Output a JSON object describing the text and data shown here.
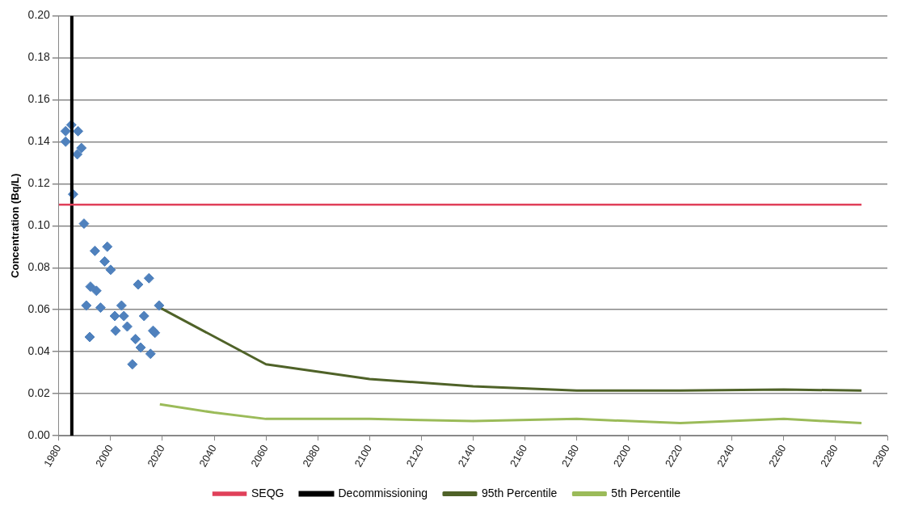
{
  "chart_data": {
    "type": "scatter",
    "ylabel": "Concentration (Bq/L)",
    "xlim": [
      1980,
      2300
    ],
    "xticks": [
      1980,
      2000,
      2020,
      2040,
      2060,
      2080,
      2100,
      2120,
      2140,
      2160,
      2180,
      2200,
      2220,
      2240,
      2260,
      2280,
      2300
    ],
    "ylim": [
      0,
      0.2
    ],
    "yticks": [
      {
        "value": 0,
        "label": "0.00"
      },
      {
        "value": 0.02,
        "label": "0.02"
      },
      {
        "value": 0.04,
        "label": "0.04"
      },
      {
        "value": 0.06,
        "label": "0.06"
      },
      {
        "value": 0.08,
        "label": "0.08"
      },
      {
        "value": 0.1,
        "label": "0.10"
      },
      {
        "value": 0.12,
        "label": "0.12"
      },
      {
        "value": 0.14,
        "label": "0.14"
      },
      {
        "value": 0.16,
        "label": "0.16"
      },
      {
        "value": 0.18,
        "label": "0.18"
      },
      {
        "value": 0.2,
        "label": "0.20"
      }
    ],
    "grid": "y",
    "legend": "bottom",
    "series": [
      {
        "color": "#4f81bd",
        "marker": "diamond",
        "x": [
          1984.8,
          1982.6,
          1982.6,
          1987.4,
          1988.7,
          1987.1,
          1985.5,
          1989.7,
          1993.9,
          1998.7,
          1997.7,
          2000,
          1992.2,
          1994.5,
          2010.6,
          2014.8,
          1990.6,
          1996.1,
          2004.2,
          2018.7,
          2001.6,
          2005.1,
          2012.9,
          2001.9,
          2006.4,
          2017.1,
          1991.9,
          2009.6,
          2011.6,
          2015.4,
          2008.4,
          2016.4
        ],
        "values": [
          0.148,
          0.145,
          0.14,
          0.145,
          0.137,
          0.134,
          0.115,
          0.101,
          0.088,
          0.09,
          0.083,
          0.079,
          0.071,
          0.069,
          0.072,
          0.075,
          0.062,
          0.061,
          0.062,
          0.062,
          0.057,
          0.057,
          0.057,
          0.05,
          0.052,
          0.049,
          0.047,
          0.046,
          0.042,
          0.039,
          0.034,
          0.05
        ]
      },
      {
        "type": "line",
        "name": "95th Percentile",
        "color": "#4f6228",
        "marker": "none",
        "x": [
          2019,
          2060,
          2100,
          2140,
          2180,
          2220,
          2260,
          2290
        ],
        "values": [
          0.061,
          0.034,
          0.027,
          0.0235,
          0.0215,
          0.0215,
          0.022,
          0.0215
        ]
      },
      {
        "type": "line",
        "name": "5th Percentile",
        "color": "#9bbb59",
        "marker": "none",
        "x": [
          2019,
          2040,
          2060,
          2100,
          2140,
          2180,
          2220,
          2260,
          2290
        ],
        "values": [
          0.015,
          0.011,
          0.008,
          0.008,
          0.007,
          0.008,
          0.006,
          0.008,
          0.006
        ]
      }
    ],
    "ref_lines": [
      {
        "axis": "y",
        "value": 0.11,
        "label": "SEQG",
        "color": "#e0405a"
      },
      {
        "axis": "x",
        "value": 1985,
        "label": "Decommissioning",
        "color": "#000000"
      }
    ]
  }
}
